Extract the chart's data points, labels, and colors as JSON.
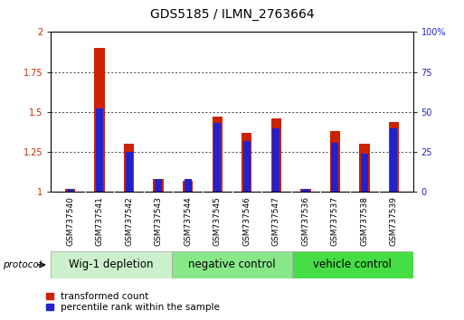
{
  "title": "GDS5185 / ILMN_2763664",
  "samples": [
    "GSM737540",
    "GSM737541",
    "GSM737542",
    "GSM737543",
    "GSM737544",
    "GSM737545",
    "GSM737546",
    "GSM737547",
    "GSM737536",
    "GSM737537",
    "GSM737538",
    "GSM737539"
  ],
  "red_values": [
    1.02,
    1.9,
    1.3,
    1.08,
    1.07,
    1.47,
    1.37,
    1.46,
    1.02,
    1.38,
    1.3,
    1.44
  ],
  "blue_values_pct": [
    2,
    52,
    25,
    8,
    8,
    43,
    32,
    40,
    2,
    31,
    24,
    40
  ],
  "ylim_left": [
    1.0,
    2.0
  ],
  "ylim_right": [
    0,
    100
  ],
  "yticks_left": [
    1.0,
    1.25,
    1.5,
    1.75,
    2.0
  ],
  "yticks_right": [
    0,
    25,
    50,
    75,
    100
  ],
  "ytick_left_labels": [
    "1",
    "1.25",
    "1.5",
    "1.75",
    "2"
  ],
  "ytick_right_labels": [
    "0",
    "25",
    "50",
    "75",
    "100%"
  ],
  "groups": [
    {
      "label": "Wig-1 depletion",
      "start": 0,
      "end": 3,
      "color": "#ccf0cc"
    },
    {
      "label": "negative control",
      "start": 4,
      "end": 7,
      "color": "#88e888"
    },
    {
      "label": "vehicle control",
      "start": 8,
      "end": 11,
      "color": "#44dd44"
    }
  ],
  "red_bar_width": 0.35,
  "blue_bar_width": 0.25,
  "red_color": "#cc2200",
  "blue_color": "#2222cc",
  "xtick_bg_color": "#cccccc",
  "legend_red": "transformed count",
  "legend_blue": "percentile rank within the sample",
  "protocol_label": "protocol",
  "title_fontsize": 10,
  "tick_fontsize": 7,
  "group_label_fontsize": 8.5,
  "xtick_fontsize": 6.5,
  "baseline": 1.0
}
